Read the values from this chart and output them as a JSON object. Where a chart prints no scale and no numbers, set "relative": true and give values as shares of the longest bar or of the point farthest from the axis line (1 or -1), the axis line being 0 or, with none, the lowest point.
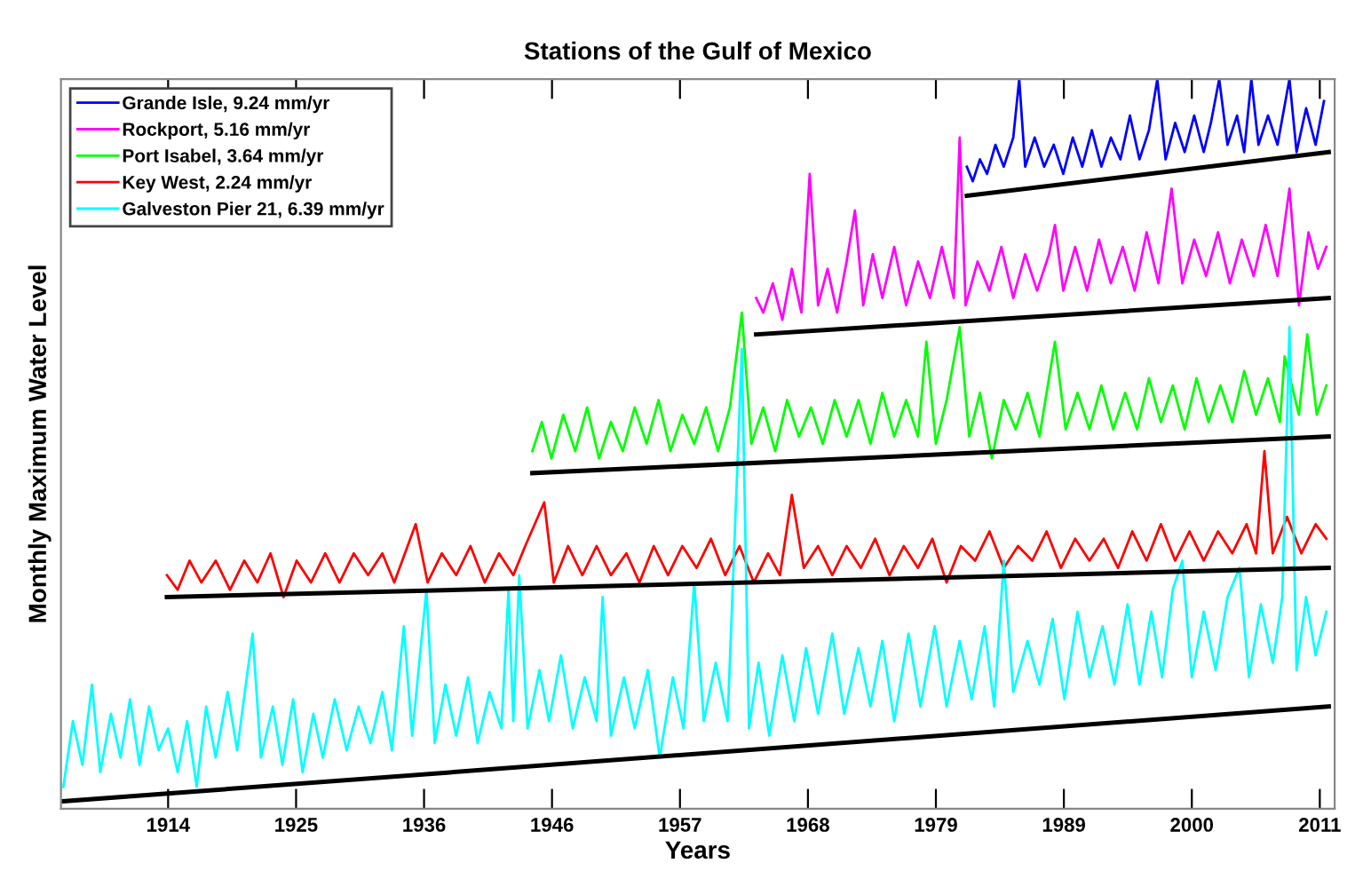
{
  "chart_data": {
    "type": "line",
    "title": "Stations of the Gulf of Mexico",
    "xlabel": "Years",
    "ylabel": "Monthly Maximum Water Level",
    "relative": true,
    "legend": "top left",
    "grid": false,
    "tick_labels": "x",
    "xlim": [
      1905,
      2012
    ],
    "xticks": [
      1914,
      {
        "value": 1924.75,
        "label": "1925"
      },
      {
        "value": 1935.5,
        "label": "1936"
      },
      {
        "value": 1946.25,
        "label": "1946"
      },
      1957,
      {
        "value": 1967.75,
        "label": "1968"
      },
      {
        "value": 1978.5,
        "label": "1979"
      },
      {
        "value": 1989.25,
        "label": "1989"
      },
      2000,
      {
        "value": 2010.75,
        "label": "2011"
      }
    ],
    "series": [
      {
        "name": "Grande Isle, 9.24 mm/yr",
        "color": "#0000ff",
        "x": [
          1981.1,
          1981.6,
          1982.2,
          1982.8,
          1983.5,
          1984.2,
          1985,
          1985.5,
          1986,
          1986.8,
          1987.6,
          1988.4,
          1989.2,
          1990,
          1990.8,
          1991.6,
          1992.4,
          1993.2,
          1994,
          1994.8,
          1995.6,
          1996.4,
          1997.1,
          1997.8,
          1998.6,
          1999.4,
          2000.2,
          2001,
          2001.6,
          2002.3,
          2003,
          2003.8,
          2004.4,
          2005,
          2005.6,
          2006.4,
          2007.2,
          2008.2,
          2008.8,
          2009.6,
          2010.4,
          2011.1
        ],
        "values": [
          0.88,
          0.86,
          0.89,
          0.87,
          0.91,
          0.88,
          0.92,
          1.0,
          0.88,
          0.92,
          0.88,
          0.91,
          0.87,
          0.92,
          0.88,
          0.93,
          0.88,
          0.92,
          0.89,
          0.95,
          0.89,
          0.93,
          1.0,
          0.89,
          0.94,
          0.9,
          0.95,
          0.9,
          0.94,
          1.0,
          0.91,
          0.95,
          0.9,
          1.0,
          0.91,
          0.95,
          0.91,
          1.0,
          0.9,
          0.96,
          0.91,
          0.97
        ]
      },
      {
        "name": "Rockport, 5.16 mm/yr",
        "color": "#ff00ff",
        "x": [
          1963.4,
          1964,
          1964.8,
          1965.6,
          1966.4,
          1967.2,
          1967.9,
          1968.6,
          1969.4,
          1970.2,
          1971,
          1971.7,
          1972.4,
          1973.2,
          1974,
          1975,
          1976,
          1977,
          1978,
          1979,
          1980,
          1980.5,
          1981,
          1982,
          1983,
          1984,
          1985,
          1986,
          1987,
          1988,
          1988.5,
          1989.2,
          1990.2,
          1991.2,
          1992.2,
          1993.2,
          1994.2,
          1995.2,
          1996.2,
          1997.2,
          1998.3,
          1999.2,
          2000.2,
          2001.2,
          2002.2,
          2003.2,
          2004.2,
          2005.2,
          2006.2,
          2007.2,
          2008.2,
          2009,
          2009.8,
          2010.6,
          2011.3
        ],
        "values": [
          0.7,
          0.68,
          0.72,
          0.67,
          0.74,
          0.68,
          0.87,
          0.69,
          0.74,
          0.68,
          0.75,
          0.82,
          0.69,
          0.76,
          0.7,
          0.77,
          0.69,
          0.75,
          0.7,
          0.77,
          0.7,
          0.92,
          0.69,
          0.75,
          0.71,
          0.77,
          0.7,
          0.76,
          0.71,
          0.76,
          0.8,
          0.71,
          0.77,
          0.71,
          0.78,
          0.72,
          0.77,
          0.71,
          0.79,
          0.72,
          0.85,
          0.72,
          0.78,
          0.73,
          0.79,
          0.72,
          0.78,
          0.73,
          0.8,
          0.73,
          0.85,
          0.69,
          0.79,
          0.74,
          0.77
        ]
      },
      {
        "name": "Port Isabel, 3.64 mm/yr",
        "color": "#00ff00",
        "x": [
          1944.6,
          1945.4,
          1946.2,
          1947.2,
          1948.2,
          1949.2,
          1950.2,
          1951.2,
          1952.2,
          1953.2,
          1954.2,
          1955.2,
          1956.2,
          1957.2,
          1958.2,
          1959.2,
          1960.2,
          1961.2,
          1962.2,
          1963,
          1964,
          1965,
          1966,
          1967,
          1968,
          1969,
          1970,
          1971,
          1972,
          1973,
          1974,
          1975,
          1976,
          1977,
          1977.7,
          1978.5,
          1979.4,
          1980.5,
          1981.3,
          1982.2,
          1983.2,
          1984.2,
          1985.2,
          1986.2,
          1987.2,
          1988.5,
          1989.4,
          1990.4,
          1991.4,
          1992.4,
          1993.4,
          1994.4,
          1995.4,
          1996.4,
          1997.4,
          1998.4,
          1999.4,
          2000.4,
          2001.4,
          2002.4,
          2003.4,
          2004.4,
          2005.4,
          2006.4,
          2007.4,
          2007.8,
          2009,
          2009.7,
          2010.5,
          2011.3
        ],
        "values": [
          0.49,
          0.53,
          0.48,
          0.54,
          0.49,
          0.55,
          0.48,
          0.53,
          0.49,
          0.55,
          0.5,
          0.56,
          0.49,
          0.54,
          0.5,
          0.55,
          0.49,
          0.55,
          0.68,
          0.5,
          0.55,
          0.49,
          0.56,
          0.51,
          0.55,
          0.5,
          0.56,
          0.51,
          0.56,
          0.5,
          0.57,
          0.51,
          0.56,
          0.51,
          0.64,
          0.5,
          0.56,
          0.66,
          0.51,
          0.57,
          0.48,
          0.56,
          0.52,
          0.57,
          0.51,
          0.64,
          0.52,
          0.57,
          0.52,
          0.58,
          0.52,
          0.57,
          0.52,
          0.59,
          0.53,
          0.58,
          0.52,
          0.59,
          0.53,
          0.58,
          0.53,
          0.6,
          0.54,
          0.59,
          0.53,
          0.62,
          0.54,
          0.65,
          0.54,
          0.58
        ]
      },
      {
        "name": "Key West, 2.24 mm/yr",
        "color": "#ff0000",
        "x": [
          1913.9,
          1914.8,
          1915.8,
          1916.8,
          1918,
          1919.2,
          1920.4,
          1921.5,
          1922.6,
          1923.7,
          1924.8,
          1926,
          1927.2,
          1928.4,
          1929.6,
          1930.8,
          1932,
          1933,
          1934.8,
          1935.8,
          1937,
          1938.2,
          1939.4,
          1940.6,
          1941.8,
          1943,
          1944,
          1945.6,
          1946.4,
          1947.6,
          1948.8,
          1950,
          1951.2,
          1952.5,
          1953.6,
          1954.8,
          1956,
          1957.2,
          1958.4,
          1959.6,
          1960.8,
          1962,
          1963.2,
          1964.4,
          1965.4,
          1966.4,
          1967.4,
          1968.6,
          1969.8,
          1971,
          1972.2,
          1973.4,
          1974.6,
          1975.8,
          1977,
          1978.2,
          1979.4,
          1980.6,
          1981.8,
          1983,
          1984.2,
          1985.4,
          1986.6,
          1987.8,
          1989,
          1990.2,
          1991.4,
          1992.6,
          1993.8,
          1995,
          1996.2,
          1997.4,
          1998.6,
          1999.8,
          2001,
          2002.2,
          2003.4,
          2004.6,
          2005.4,
          2006.1,
          2006.8,
          2008,
          2009.2,
          2010.4,
          2011.3
        ],
        "values": [
          0.32,
          0.3,
          0.34,
          0.31,
          0.34,
          0.3,
          0.34,
          0.31,
          0.35,
          0.29,
          0.34,
          0.31,
          0.35,
          0.31,
          0.35,
          0.32,
          0.35,
          0.31,
          0.39,
          0.31,
          0.35,
          0.32,
          0.36,
          0.31,
          0.35,
          0.32,
          0.36,
          0.42,
          0.31,
          0.36,
          0.32,
          0.36,
          0.32,
          0.35,
          0.31,
          0.36,
          0.32,
          0.36,
          0.33,
          0.37,
          0.32,
          0.36,
          0.31,
          0.35,
          0.32,
          0.43,
          0.33,
          0.36,
          0.32,
          0.36,
          0.33,
          0.37,
          0.32,
          0.36,
          0.33,
          0.37,
          0.31,
          0.36,
          0.34,
          0.38,
          0.33,
          0.36,
          0.34,
          0.38,
          0.33,
          0.37,
          0.34,
          0.37,
          0.33,
          0.38,
          0.34,
          0.39,
          0.34,
          0.38,
          0.34,
          0.38,
          0.35,
          0.39,
          0.35,
          0.49,
          0.35,
          0.4,
          0.35,
          0.39,
          0.37
        ]
      },
      {
        "name": "Galveston Pier 21, 6.39 mm/yr",
        "color": "#00ffff",
        "x": [
          1905.2,
          1906,
          1906.8,
          1907.6,
          1908.3,
          1909.2,
          1910,
          1910.8,
          1911.6,
          1912.4,
          1913.2,
          1914,
          1914.8,
          1915.6,
          1916.4,
          1917.2,
          1918,
          1919,
          1919.8,
          1921.1,
          1921.8,
          1922.8,
          1923.6,
          1924.5,
          1925.3,
          1926.2,
          1927,
          1928,
          1929,
          1930,
          1931,
          1932,
          1932.8,
          1933.8,
          1934.5,
          1935.7,
          1936.4,
          1937.3,
          1938.2,
          1939.2,
          1940,
          1941,
          1942,
          1942.6,
          1943,
          1943.5,
          1944.2,
          1945.2,
          1946,
          1947,
          1948,
          1949,
          1950,
          1950.5,
          1951.2,
          1952.3,
          1953.2,
          1954.3,
          1955.3,
          1956.4,
          1957.3,
          1958.2,
          1959,
          1960,
          1961,
          1962.2,
          1962.8,
          1963.6,
          1964.5,
          1965.6,
          1966.6,
          1967.6,
          1968.6,
          1969.8,
          1970.8,
          1972,
          1973,
          1974,
          1975,
          1976.2,
          1977.2,
          1978.4,
          1979.4,
          1980.5,
          1981.5,
          1982.6,
          1983.4,
          1984.2,
          1985,
          1986.2,
          1987.2,
          1988.3,
          1989.3,
          1990.4,
          1991.4,
          1992.5,
          1993.5,
          1994.6,
          1995.6,
          1996.6,
          1997.5,
          1998.4,
          1999.2,
          2000,
          2001,
          2002,
          2003,
          2004,
          2004.8,
          2005.8,
          2006.8,
          2007.6,
          2008.2,
          2008.8,
          2009.6,
          2010.4,
          2011.3
        ],
        "values": [
          0.03,
          0.12,
          0.06,
          0.17,
          0.05,
          0.13,
          0.07,
          0.15,
          0.06,
          0.14,
          0.08,
          0.11,
          0.05,
          0.12,
          0.03,
          0.14,
          0.07,
          0.16,
          0.08,
          0.24,
          0.07,
          0.14,
          0.06,
          0.15,
          0.05,
          0.13,
          0.07,
          0.15,
          0.08,
          0.14,
          0.09,
          0.16,
          0.08,
          0.25,
          0.1,
          0.3,
          0.09,
          0.17,
          0.1,
          0.18,
          0.09,
          0.16,
          0.11,
          0.3,
          0.12,
          0.32,
          0.11,
          0.19,
          0.12,
          0.21,
          0.11,
          0.18,
          0.12,
          0.29,
          0.1,
          0.18,
          0.11,
          0.19,
          0.07,
          0.18,
          0.11,
          0.31,
          0.12,
          0.2,
          0.12,
          0.63,
          0.11,
          0.2,
          0.1,
          0.21,
          0.12,
          0.22,
          0.13,
          0.24,
          0.13,
          0.22,
          0.14,
          0.23,
          0.12,
          0.24,
          0.14,
          0.25,
          0.14,
          0.23,
          0.15,
          0.25,
          0.14,
          0.34,
          0.16,
          0.23,
          0.17,
          0.26,
          0.15,
          0.27,
          0.18,
          0.25,
          0.17,
          0.28,
          0.17,
          0.27,
          0.18,
          0.3,
          0.34,
          0.18,
          0.27,
          0.19,
          0.29,
          0.33,
          0.18,
          0.28,
          0.2,
          0.29,
          0.66,
          0.19,
          0.29,
          0.21,
          0.27
        ]
      },
      {
        "color": "#000000",
        "x": [
          1981.1,
          2011.5
        ],
        "values": [
          0.84,
          0.9
        ]
      },
      {
        "color": "#000000",
        "x": [
          1963.4,
          2011.5
        ],
        "values": [
          0.65,
          0.7
        ]
      },
      {
        "color": "#000000",
        "x": [
          1944.6,
          2011.5
        ],
        "values": [
          0.46,
          0.51
        ]
      },
      {
        "color": "#000000",
        "x": [
          1913.9,
          2011.5
        ],
        "values": [
          0.29,
          0.33
        ]
      },
      {
        "color": "#000000",
        "x": [
          1905.1,
          2011.5
        ],
        "values": [
          0.01,
          0.14
        ]
      }
    ]
  }
}
